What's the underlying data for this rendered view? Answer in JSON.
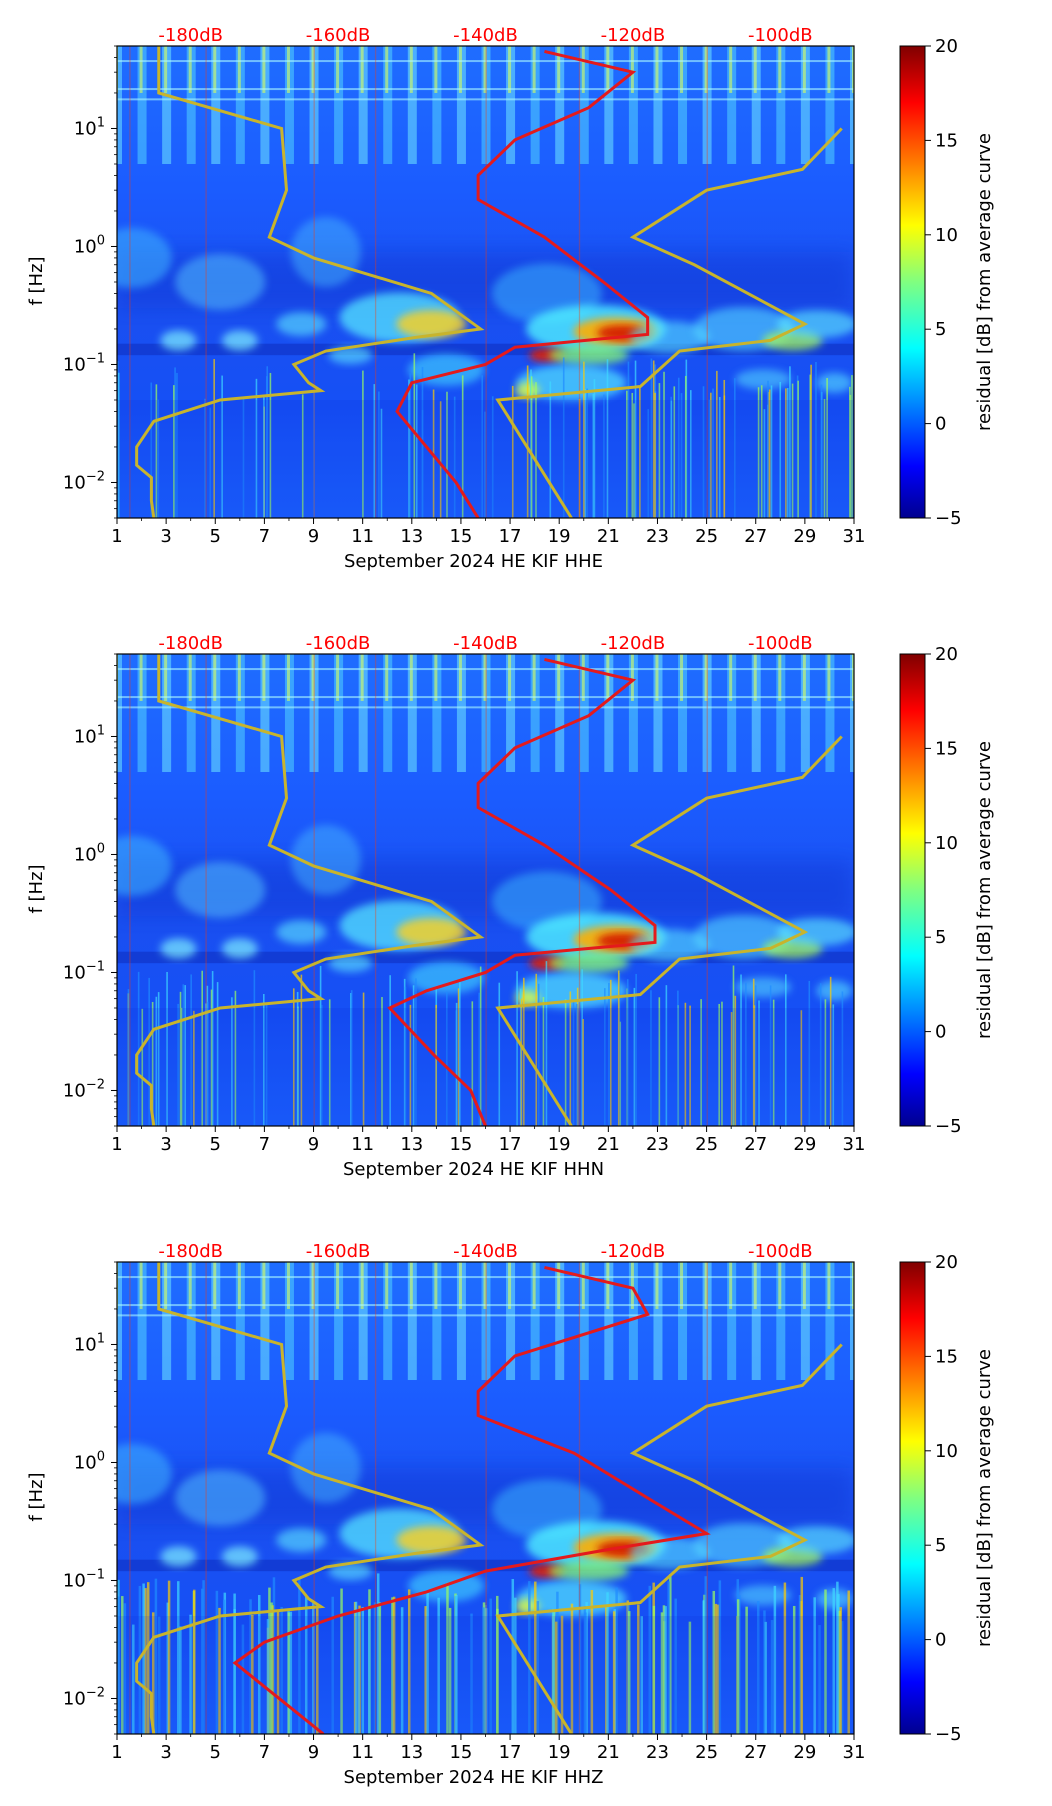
{
  "figure": {
    "x_ticks": [
      "1",
      "3",
      "5",
      "7",
      "9",
      "11",
      "13",
      "15",
      "17",
      "19",
      "21",
      "23",
      "25",
      "27",
      "29",
      "31"
    ],
    "y_ticks": [
      {
        "base": "10",
        "exp": "1",
        "value": 10
      },
      {
        "base": "10",
        "exp": "0",
        "value": 1
      },
      {
        "base": "10",
        "exp": "−1",
        "value": 0.1
      },
      {
        "base": "10",
        "exp": "−2",
        "value": 0.01
      }
    ],
    "y_label": "f [Hz]",
    "db_labels": [
      "-180dB",
      "-160dB",
      "-140dB",
      "-120dB",
      "-100dB"
    ],
    "colorbar_label": "residual [dB] from average curve",
    "colorbar_ticks": [
      "20",
      "15",
      "10",
      "5",
      "0",
      "−5"
    ],
    "colorbar_range": [
      -5,
      20
    ],
    "colors": {
      "psd_curve": "#e41a1c",
      "model_curve": "#c8b42c",
      "db_label": "#ff0000",
      "background_blue": "#1b5cff"
    }
  },
  "chart_data": [
    {
      "type": "heatmap",
      "title": "",
      "xlabel": "September 2024 HE KIF  HHE",
      "ylabel": "f [Hz]",
      "xlim": [
        1,
        31
      ],
      "ylim": [
        0.005,
        50
      ],
      "y_scale": "log",
      "top_axis_db": [
        -180,
        -160,
        -140,
        -120,
        -100
      ],
      "colorbar": {
        "label": "residual [dB] from average curve",
        "range": [
          -5,
          20
        ]
      },
      "average_psd_curve_db": [
        {
          "f": 45,
          "db": -132
        },
        {
          "f": 30,
          "db": -120
        },
        {
          "f": 15,
          "db": -126
        },
        {
          "f": 8,
          "db": -136
        },
        {
          "f": 4,
          "db": -141
        },
        {
          "f": 2.5,
          "db": -141
        },
        {
          "f": 1.2,
          "db": -132
        },
        {
          "f": 0.5,
          "db": -124
        },
        {
          "f": 0.25,
          "db": -118
        },
        {
          "f": 0.18,
          "db": -118
        },
        {
          "f": 0.14,
          "db": -136
        },
        {
          "f": 0.1,
          "db": -140
        },
        {
          "f": 0.07,
          "db": -150
        },
        {
          "f": 0.04,
          "db": -152
        },
        {
          "f": 0.02,
          "db": -148
        },
        {
          "f": 0.01,
          "db": -144
        },
        {
          "f": 0.005,
          "db": -141
        }
      ]
    },
    {
      "type": "heatmap",
      "title": "",
      "xlabel": "September 2024 HE KIF  HHN",
      "ylabel": "f [Hz]",
      "xlim": [
        1,
        31
      ],
      "ylim": [
        0.005,
        50
      ],
      "y_scale": "log",
      "top_axis_db": [
        -180,
        -160,
        -140,
        -120,
        -100
      ],
      "colorbar": {
        "label": "residual [dB] from average curve",
        "range": [
          -5,
          20
        ]
      },
      "average_psd_curve_db": [
        {
          "f": 45,
          "db": -132
        },
        {
          "f": 30,
          "db": -120
        },
        {
          "f": 15,
          "db": -126
        },
        {
          "f": 8,
          "db": -136
        },
        {
          "f": 4,
          "db": -141
        },
        {
          "f": 2.5,
          "db": -141
        },
        {
          "f": 1.2,
          "db": -132
        },
        {
          "f": 0.5,
          "db": -123
        },
        {
          "f": 0.25,
          "db": -117
        },
        {
          "f": 0.18,
          "db": -117
        },
        {
          "f": 0.14,
          "db": -136
        },
        {
          "f": 0.1,
          "db": -140
        },
        {
          "f": 0.07,
          "db": -148
        },
        {
          "f": 0.05,
          "db": -153
        },
        {
          "f": 0.02,
          "db": -147
        },
        {
          "f": 0.01,
          "db": -142
        },
        {
          "f": 0.005,
          "db": -140
        }
      ]
    },
    {
      "type": "heatmap",
      "title": "",
      "xlabel": "September 2024 HE KIF  HHZ",
      "ylabel": "f [Hz]",
      "xlim": [
        1,
        31
      ],
      "ylim": [
        0.005,
        50
      ],
      "y_scale": "log",
      "top_axis_db": [
        -180,
        -160,
        -140,
        -120,
        -100
      ],
      "colorbar": {
        "label": "residual [dB] from average curve",
        "range": [
          -5,
          20
        ]
      },
      "average_psd_curve_db": [
        {
          "f": 45,
          "db": -132
        },
        {
          "f": 30,
          "db": -120
        },
        {
          "f": 18,
          "db": -118
        },
        {
          "f": 8,
          "db": -136
        },
        {
          "f": 4,
          "db": -141
        },
        {
          "f": 2.5,
          "db": -141
        },
        {
          "f": 1.2,
          "db": -128
        },
        {
          "f": 0.5,
          "db": -118
        },
        {
          "f": 0.25,
          "db": -110
        },
        {
          "f": 0.18,
          "db": -124
        },
        {
          "f": 0.12,
          "db": -140
        },
        {
          "f": 0.08,
          "db": -148
        },
        {
          "f": 0.05,
          "db": -160
        },
        {
          "f": 0.03,
          "db": -170
        },
        {
          "f": 0.02,
          "db": -174
        },
        {
          "f": 0.01,
          "db": -168
        },
        {
          "f": 0.005,
          "db": -162
        }
      ]
    }
  ]
}
